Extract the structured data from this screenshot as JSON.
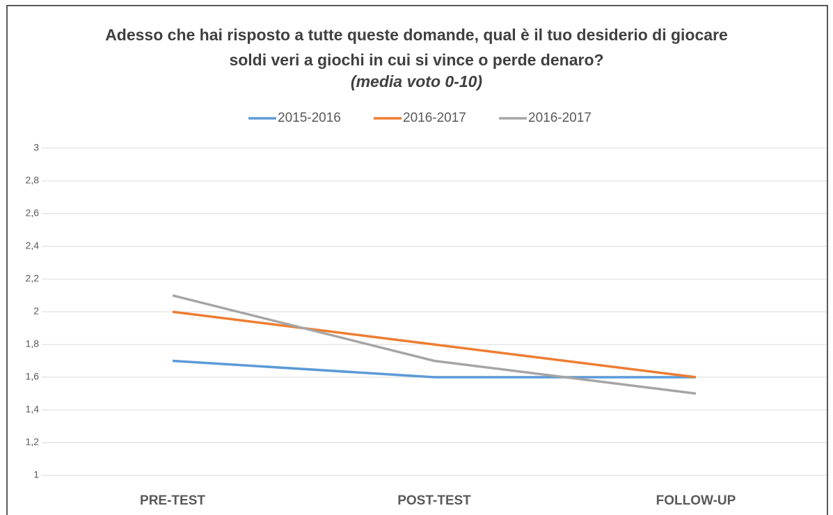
{
  "chart_data": {
    "type": "line",
    "title": "Adesso che hai risposto a tutte queste domande, qual è il tuo desiderio di giocare soldi veri a giochi in cui si vince o perde denaro?",
    "subtitle": "(media voto 0-10)",
    "categories": [
      "PRE-TEST",
      "POST-TEST",
      "FOLLOW-UP"
    ],
    "series": [
      {
        "name": "2015-2016",
        "color": "#5b9bd5",
        "values": [
          1.7,
          1.6,
          1.6
        ]
      },
      {
        "name": "2016-2017",
        "color": "#ed7d31",
        "values": [
          2.0,
          1.8,
          1.6
        ]
      },
      {
        "name": "2016-2017",
        "color": "#a5a5a5",
        "values": [
          2.1,
          1.7,
          1.5
        ]
      }
    ],
    "ylim": [
      1,
      3
    ],
    "yticks": [
      1,
      {
        "value": 1.2,
        "label": "1,2"
      },
      {
        "value": 1.4,
        "label": "1,4"
      },
      {
        "value": 1.6,
        "label": "1,6"
      },
      {
        "value": 1.8,
        "label": "1,8"
      },
      2,
      {
        "value": 2.2,
        "label": "2,2"
      },
      {
        "value": 2.4,
        "label": "2,4"
      },
      {
        "value": 2.6,
        "label": "2,6"
      },
      {
        "value": 2.8,
        "label": "2,8"
      },
      3
    ],
    "grid": true,
    "legend": "top"
  }
}
